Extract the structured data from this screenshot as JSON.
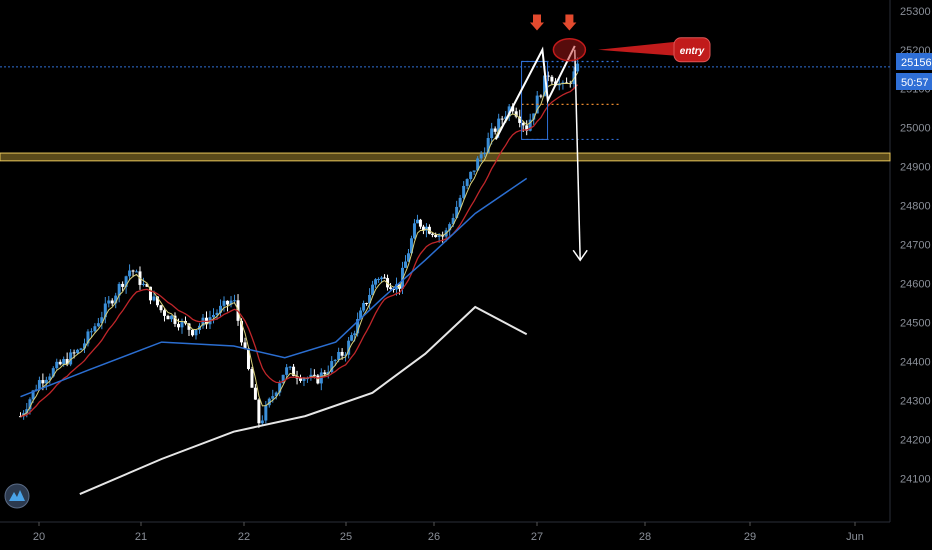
{
  "colors": {
    "background": "#000000",
    "bull": "#3b8fd9",
    "bear": "#ffffff",
    "ema_fast": "#d8d07a",
    "ema_mid": "#c0262a",
    "ma_slow": "#2b6ed1",
    "ma_long": "#e6e6e6",
    "zone_fill": "#5a4a1a",
    "zone_border": "#e8c65a",
    "price_line": "#2f6fd6",
    "signal_arrow": "#e34a2e",
    "entry_bubble": "#c11b1b",
    "annotation": "#ffffff",
    "axis_text": "#8a8f98"
  },
  "chart_data": {
    "type": "candlestick",
    "x_ticks": [
      {
        "label": "20",
        "day": 20
      },
      {
        "label": "21",
        "day": 21
      },
      {
        "label": "22",
        "day": 22
      },
      {
        "label": "25",
        "day": 25
      },
      {
        "label": "26",
        "day": 26
      },
      {
        "label": "27",
        "day": 27
      },
      {
        "label": "28",
        "day": 28
      },
      {
        "label": "29",
        "day": 29
      },
      {
        "label": "Jun",
        "day": 30
      }
    ],
    "y_ticks": [
      25300,
      25200,
      25100,
      25000,
      24900,
      24800,
      24700,
      24600,
      24500,
      24400,
      24300,
      24200,
      24100
    ],
    "ylim": [
      24050,
      25320
    ],
    "current_price": "25156",
    "countdown": "50:57",
    "resistance_zone": [
      24915,
      24935
    ],
    "anchors": [
      {
        "day": 19.8,
        "price": 24260
      },
      {
        "day": 20.0,
        "price": 24350
      },
      {
        "day": 20.4,
        "price": 24430
      },
      {
        "day": 20.9,
        "price": 24640
      },
      {
        "day": 21.2,
        "price": 24530
      },
      {
        "day": 21.5,
        "price": 24480
      },
      {
        "day": 21.9,
        "price": 24560
      },
      {
        "day": 22.15,
        "price": 24240
      },
      {
        "day": 22.4,
        "price": 24380
      },
      {
        "day": 22.7,
        "price": 24350
      },
      {
        "day": 23.0,
        "price": 24430
      },
      {
        "day": 23.35,
        "price": 24620
      },
      {
        "day": 23.6,
        "price": 24590
      },
      {
        "day": 23.8,
        "price": 24760
      },
      {
        "day": 24.1,
        "price": 24720
      },
      {
        "day": 24.3,
        "price": 24850
      },
      {
        "day": 24.55,
        "price": 24980
      },
      {
        "day": 24.75,
        "price": 25060
      },
      {
        "day": 24.9,
        "price": 25000
      },
      {
        "day": 25.1,
        "price": 25140
      },
      {
        "day": 25.25,
        "price": 25100
      },
      {
        "day": 25.4,
        "price": 25160
      }
    ],
    "ma_slow": [
      {
        "day": 19.8,
        "price": 24310
      },
      {
        "day": 20.5,
        "price": 24380
      },
      {
        "day": 21.2,
        "price": 24450
      },
      {
        "day": 21.9,
        "price": 24440
      },
      {
        "day": 22.4,
        "price": 24410
      },
      {
        "day": 22.9,
        "price": 24450
      },
      {
        "day": 23.4,
        "price": 24560
      },
      {
        "day": 23.9,
        "price": 24660
      },
      {
        "day": 24.4,
        "price": 24780
      },
      {
        "day": 24.9,
        "price": 24870
      }
    ],
    "ma_long": [
      {
        "day": 20.4,
        "price": 24060
      },
      {
        "day": 21.2,
        "price": 24150
      },
      {
        "day": 21.9,
        "price": 24220
      },
      {
        "day": 22.6,
        "price": 24260
      },
      {
        "day": 23.3,
        "price": 24320
      },
      {
        "day": 23.9,
        "price": 24420
      },
      {
        "day": 24.4,
        "price": 24540
      },
      {
        "day": 24.9,
        "price": 24470
      }
    ],
    "annotations": {
      "entry_label": "entry",
      "signal_arrows": [
        {
          "day": 25.0,
          "price": 25270
        },
        {
          "day": 25.3,
          "price": 25270
        }
      ],
      "zigzag": [
        {
          "day": 24.6,
          "price": 24970
        },
        {
          "day": 25.05,
          "price": 25200
        },
        {
          "day": 25.1,
          "price": 25070
        },
        {
          "day": 25.35,
          "price": 25210
        }
      ],
      "drop_arrow": [
        {
          "day": 25.35,
          "price": 25200
        },
        {
          "day": 25.4,
          "price": 24660
        }
      ],
      "dotted_levels": [
        {
          "from": 24.85,
          "to": 25.4,
          "price": 25170,
          "color": "#2f6fd6"
        },
        {
          "from": 24.85,
          "to": 25.4,
          "price": 25060,
          "color": "#e8892e"
        },
        {
          "from": 24.85,
          "to": 25.4,
          "price": 24970,
          "color": "#2f6fd6"
        }
      ]
    }
  },
  "logo": {
    "name": "platform-logo-icon"
  }
}
